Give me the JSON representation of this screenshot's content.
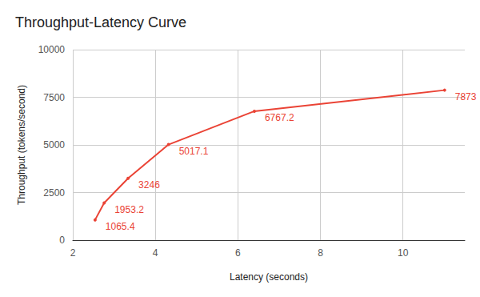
{
  "chart_data": {
    "type": "line",
    "title": "Throughput-Latency Curve",
    "x_label": "Latency (seconds)",
    "y_label": "Throughput (tokens/second)",
    "x": [
      2.54,
      2.76,
      3.34,
      4.32,
      6.4,
      11.01
    ],
    "values": [
      1065.4,
      1953.2,
      3246,
      5017.1,
      6767.2,
      7873
    ],
    "color": "#ea4335",
    "marker": "circle",
    "xlim": [
      2,
      11.5
    ],
    "ylim": [
      0,
      10000
    ],
    "xticks": [
      2,
      4,
      6,
      8,
      10
    ],
    "yticks": [
      0,
      2500,
      5000,
      7500,
      10000
    ],
    "grid": true,
    "data_labels": true
  }
}
